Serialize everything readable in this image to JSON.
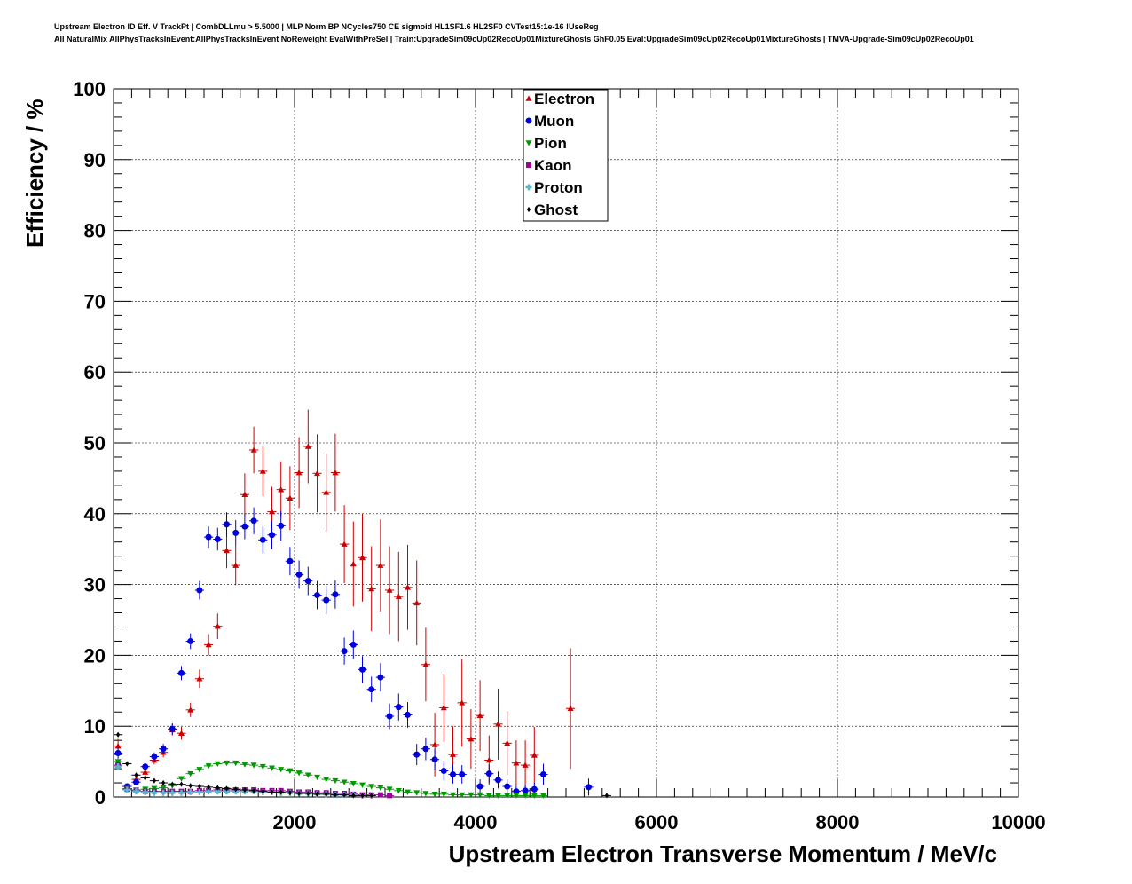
{
  "header": {
    "title_line1": "Upstream Electron ID Eff. V TrackPt | CombDLLmu > 5.5000 | MLP Norm BP NCycles750 CE sigmoid HL1SF1.6 HL2SF0 CVTest15:1e-16 !UseReg",
    "title_line2": "All NaturalMix AllPhysTracksInEvent:AllPhysTracksInEvent NoReweight EvalWithPreSel | Train:UpgradeSim09cUp02RecoUp01MixtureGhosts GhF0.05 Eval:UpgradeSim09cUp02RecoUp01MixtureGhosts | TMVA-Upgrade-Sim09cUp02RecoUp01"
  },
  "chart_data": {
    "type": "scatter",
    "xlabel": "Upstream Electron Transverse Momentum / MeV/c",
    "ylabel": "Efficiency / %",
    "xlim": [
      0,
      10000
    ],
    "ylim": [
      0,
      100
    ],
    "xticks": [
      2000,
      4000,
      6000,
      8000,
      10000
    ],
    "yticks": [
      0,
      10,
      20,
      30,
      40,
      50,
      60,
      70,
      80,
      90,
      100
    ],
    "grid": true,
    "legend_position": "top-center",
    "series": [
      {
        "name": "Electron",
        "color": "#cc0000",
        "marker": "triangle-up",
        "points": [
          [
            50,
            7.2,
            1.0
          ],
          [
            150,
            1.5,
            0.3
          ],
          [
            250,
            2.5,
            0.4
          ],
          [
            350,
            3.5,
            0.5
          ],
          [
            450,
            5.2,
            0.6
          ],
          [
            550,
            6.3,
            0.7
          ],
          [
            650,
            9.5,
            0.8
          ],
          [
            750,
            9.0,
            0.9
          ],
          [
            850,
            12.3,
            1.0
          ],
          [
            950,
            16.7,
            1.3
          ],
          [
            1050,
            21.5,
            1.5
          ],
          [
            1150,
            24.1,
            1.8
          ],
          [
            1250,
            34.8,
            2.5
          ],
          [
            1350,
            32.7,
            2.8
          ],
          [
            1450,
            42.7,
            3.0
          ],
          [
            1550,
            49.0,
            3.3
          ],
          [
            1650,
            46.0,
            3.5
          ],
          [
            1750,
            40.3,
            3.5
          ],
          [
            1850,
            43.4,
            4.0
          ],
          [
            1950,
            42.2,
            4.5
          ],
          [
            2050,
            45.8,
            5.0
          ],
          [
            2150,
            49.5,
            5.2
          ],
          [
            2250,
            45.7,
            5.5
          ],
          [
            2350,
            43.0,
            5.5
          ],
          [
            2450,
            45.8,
            5.5
          ],
          [
            2550,
            35.7,
            5.5
          ],
          [
            2650,
            32.9,
            6.0
          ],
          [
            2750,
            33.8,
            6.2
          ],
          [
            2850,
            29.4,
            6.0
          ],
          [
            2950,
            32.7,
            6.5
          ],
          [
            3050,
            29.2,
            6.2
          ],
          [
            3150,
            28.3,
            6.3
          ],
          [
            3250,
            29.6,
            6.0
          ],
          [
            3350,
            27.4,
            6.0
          ],
          [
            3450,
            18.7,
            5.2
          ],
          [
            3550,
            7.4,
            4.5
          ],
          [
            3650,
            12.6,
            4.8
          ],
          [
            3750,
            6.0,
            4.0
          ],
          [
            3850,
            13.3,
            6.2
          ],
          [
            3950,
            8.2,
            4.2
          ],
          [
            4050,
            11.5,
            5.0
          ],
          [
            4150,
            5.2,
            3.5
          ],
          [
            4250,
            10.3,
            5.0
          ],
          [
            4350,
            7.6,
            4.5
          ],
          [
            4450,
            4.8,
            3.2
          ],
          [
            4550,
            4.5,
            3.5
          ],
          [
            4650,
            5.9,
            4.0
          ],
          [
            5050,
            12.5,
            8.5
          ]
        ]
      },
      {
        "name": "Muon",
        "color": "#0000dd",
        "marker": "circle",
        "points": [
          [
            50,
            6.2,
            0.8
          ],
          [
            150,
            1.5,
            0.3
          ],
          [
            250,
            2.1,
            0.4
          ],
          [
            350,
            4.3,
            0.5
          ],
          [
            450,
            5.7,
            0.6
          ],
          [
            550,
            6.8,
            0.7
          ],
          [
            650,
            9.6,
            0.8
          ],
          [
            750,
            17.5,
            1.0
          ],
          [
            850,
            22.0,
            1.1
          ],
          [
            950,
            29.2,
            1.3
          ],
          [
            1050,
            36.7,
            1.5
          ],
          [
            1150,
            36.4,
            1.6
          ],
          [
            1250,
            38.5,
            1.7
          ],
          [
            1350,
            37.3,
            1.8
          ],
          [
            1450,
            38.2,
            1.8
          ],
          [
            1550,
            39.0,
            1.9
          ],
          [
            1650,
            36.3,
            1.9
          ],
          [
            1750,
            37.0,
            2.0
          ],
          [
            1850,
            38.3,
            2.1
          ],
          [
            1950,
            33.3,
            2.0
          ],
          [
            2050,
            31.4,
            2.0
          ],
          [
            2150,
            30.5,
            2.0
          ],
          [
            2250,
            28.5,
            2.0
          ],
          [
            2350,
            27.8,
            2.0
          ],
          [
            2450,
            28.6,
            2.0
          ],
          [
            2550,
            20.6,
            1.9
          ],
          [
            2650,
            21.5,
            2.0
          ],
          [
            2750,
            18.0,
            1.9
          ],
          [
            2850,
            15.2,
            1.8
          ],
          [
            2950,
            16.9,
            2.0
          ],
          [
            3050,
            11.4,
            1.8
          ],
          [
            3150,
            12.7,
            1.9
          ],
          [
            3250,
            11.6,
            1.8
          ],
          [
            3350,
            6.0,
            1.5
          ],
          [
            3450,
            6.8,
            1.6
          ],
          [
            3550,
            5.3,
            1.5
          ],
          [
            3650,
            3.7,
            1.4
          ],
          [
            3750,
            3.2,
            1.3
          ],
          [
            3850,
            3.2,
            1.3
          ],
          [
            4050,
            1.5,
            1.0
          ],
          [
            4150,
            3.3,
            1.3
          ],
          [
            4250,
            2.4,
            1.2
          ],
          [
            4350,
            1.5,
            1.0
          ],
          [
            4450,
            0.8,
            0.8
          ],
          [
            4550,
            0.9,
            0.8
          ],
          [
            4650,
            1.1,
            0.9
          ],
          [
            4750,
            3.2,
            1.5
          ],
          [
            5250,
            1.4,
            1.2
          ]
        ]
      },
      {
        "name": "Pion",
        "color": "#009900",
        "marker": "triangle-down",
        "points": [
          [
            50,
            5.0
          ],
          [
            150,
            1.2
          ],
          [
            250,
            1.0
          ],
          [
            350,
            1.1
          ],
          [
            450,
            1.2
          ],
          [
            550,
            1.3
          ],
          [
            650,
            1.6
          ],
          [
            750,
            2.6
          ],
          [
            850,
            3.3
          ],
          [
            950,
            3.9
          ],
          [
            1050,
            4.4
          ],
          [
            1150,
            4.7
          ],
          [
            1250,
            4.8
          ],
          [
            1350,
            4.8
          ],
          [
            1450,
            4.6
          ],
          [
            1550,
            4.5
          ],
          [
            1650,
            4.3
          ],
          [
            1750,
            4.1
          ],
          [
            1850,
            3.9
          ],
          [
            1950,
            3.7
          ],
          [
            2050,
            3.4
          ],
          [
            2150,
            3.1
          ],
          [
            2250,
            2.8
          ],
          [
            2350,
            2.5
          ],
          [
            2450,
            2.3
          ],
          [
            2550,
            2.1
          ],
          [
            2650,
            1.9
          ],
          [
            2750,
            1.7
          ],
          [
            2850,
            1.5
          ],
          [
            2950,
            1.3
          ],
          [
            3050,
            1.1
          ],
          [
            3150,
            0.9
          ],
          [
            3250,
            0.7
          ],
          [
            3350,
            0.6
          ],
          [
            3450,
            0.5
          ],
          [
            3550,
            0.4
          ],
          [
            3650,
            0.4
          ],
          [
            3750,
            0.3
          ],
          [
            3850,
            0.3
          ],
          [
            3950,
            0.3
          ],
          [
            4050,
            0.3
          ],
          [
            4150,
            0.2
          ],
          [
            4250,
            0.2
          ],
          [
            4350,
            0.2
          ],
          [
            4450,
            0.2
          ],
          [
            4550,
            0.2
          ],
          [
            4650,
            0.2
          ],
          [
            4750,
            0.2
          ]
        ]
      },
      {
        "name": "Kaon",
        "color": "#990099",
        "marker": "square",
        "points": [
          [
            50,
            4.5
          ],
          [
            150,
            1.1
          ],
          [
            250,
            0.9
          ],
          [
            350,
            0.8
          ],
          [
            450,
            0.8
          ],
          [
            550,
            0.8
          ],
          [
            650,
            0.8
          ],
          [
            750,
            0.8
          ],
          [
            850,
            0.8
          ],
          [
            950,
            0.9
          ],
          [
            1050,
            0.9
          ],
          [
            1150,
            1.0
          ],
          [
            1250,
            1.0
          ],
          [
            1350,
            1.0
          ],
          [
            1450,
            1.0
          ],
          [
            1550,
            1.0
          ],
          [
            1650,
            0.9
          ],
          [
            1750,
            0.9
          ],
          [
            1850,
            0.9
          ],
          [
            1950,
            0.8
          ],
          [
            2050,
            0.7
          ],
          [
            2150,
            0.7
          ],
          [
            2250,
            0.6
          ],
          [
            2350,
            0.6
          ],
          [
            2450,
            0.5
          ],
          [
            2550,
            0.5
          ],
          [
            2650,
            0.4
          ],
          [
            2750,
            0.3
          ],
          [
            2850,
            0.3
          ],
          [
            2950,
            0.3
          ],
          [
            3050,
            0.2
          ]
        ]
      },
      {
        "name": "Proton",
        "color": "#55bbcc",
        "marker": "cross",
        "points": [
          [
            50,
            4.3
          ],
          [
            150,
            1.0
          ],
          [
            250,
            0.8
          ],
          [
            350,
            0.7
          ],
          [
            450,
            0.6
          ],
          [
            550,
            0.6
          ],
          [
            650,
            0.6
          ],
          [
            750,
            0.6
          ],
          [
            850,
            0.7
          ],
          [
            950,
            0.7
          ],
          [
            1050,
            0.8
          ],
          [
            1150,
            0.8
          ],
          [
            1250,
            0.8
          ],
          [
            1350,
            0.8
          ],
          [
            1450,
            0.8
          ],
          [
            1550,
            0.8
          ],
          [
            1650,
            0.7
          ],
          [
            1750,
            0.7
          ],
          [
            1850,
            0.6
          ],
          [
            1950,
            0.6
          ],
          [
            2050,
            0.5
          ],
          [
            2150,
            0.5
          ],
          [
            2250,
            0.4
          ],
          [
            2350,
            0.4
          ],
          [
            2450,
            0.3
          ],
          [
            2550,
            0.3
          ],
          [
            2650,
            0.3
          ],
          [
            2750,
            0.2
          ],
          [
            2850,
            0.2
          ]
        ]
      },
      {
        "name": "Ghost",
        "color": "#000000",
        "marker": "diamond",
        "points": [
          [
            50,
            8.8
          ],
          [
            150,
            4.7
          ],
          [
            250,
            3.1
          ],
          [
            350,
            2.7
          ],
          [
            450,
            2.3
          ],
          [
            550,
            2.0
          ],
          [
            650,
            1.8
          ],
          [
            750,
            1.8
          ],
          [
            850,
            1.6
          ],
          [
            950,
            1.5
          ],
          [
            1050,
            1.4
          ],
          [
            1150,
            1.3
          ],
          [
            1250,
            1.2
          ],
          [
            1350,
            1.1
          ],
          [
            1450,
            1.0
          ],
          [
            1550,
            0.9
          ],
          [
            1650,
            0.8
          ],
          [
            1750,
            0.7
          ],
          [
            1850,
            0.7
          ],
          [
            1950,
            0.6
          ],
          [
            2050,
            0.5
          ],
          [
            2150,
            0.5
          ],
          [
            2250,
            0.4
          ],
          [
            2350,
            0.4
          ],
          [
            2450,
            0.3
          ],
          [
            2550,
            0.3
          ],
          [
            2650,
            0.2
          ],
          [
            2750,
            0.2
          ],
          [
            2850,
            0.2
          ],
          [
            5450,
            0.2
          ]
        ]
      }
    ]
  }
}
